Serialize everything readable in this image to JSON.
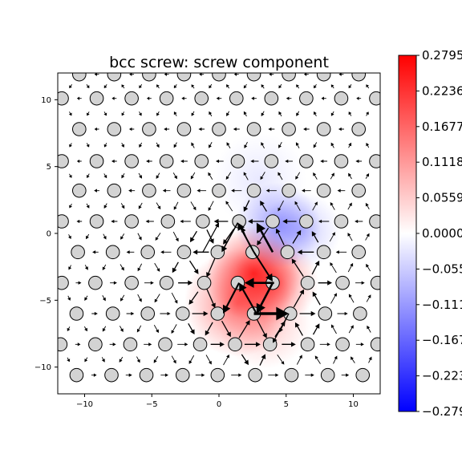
{
  "chart_data": {
    "type": "scatter",
    "title": "bcc screw: screw component",
    "xlabel": "",
    "ylabel": "",
    "xlim": [
      -12,
      12
    ],
    "ylim": [
      -12,
      12
    ],
    "x_ticks": [
      -10,
      -5,
      0,
      5,
      10
    ],
    "y_ticks": [
      -10,
      -5,
      0,
      5,
      10
    ],
    "x_tick_labels": [
      "−10",
      "−5",
      "0",
      "5",
      "10"
    ],
    "y_tick_labels": [
      "−10",
      "−5",
      "0",
      "5",
      "10"
    ],
    "colorbar": {
      "colormap": "bwr",
      "min": -0.2795,
      "max": 0.2795,
      "ticks": [
        0.2795,
        0.2236,
        0.1677,
        0.1118,
        0.0559,
        0.0,
        -0.0559,
        -0.1118,
        -0.1677,
        -0.2236,
        -0.2795
      ],
      "tick_labels": [
        "0.2795",
        "0.2236",
        "0.1677",
        "0.1118",
        "0.0559",
        "0.0000",
        "−0.0559",
        "−0.1118",
        "−0.1677",
        "−0.2236",
        "−0.2795"
      ]
    },
    "atom_rows": [
      {
        "y": 11.9,
        "x": [
          -10.4,
          -7.8,
          -5.2,
          -2.6,
          0,
          2.6,
          5.2,
          7.8,
          10.4
        ]
      },
      {
        "y": 10.1,
        "x": [
          -11.7,
          -9.1,
          -6.5,
          -3.9,
          -1.3,
          1.3,
          3.9,
          6.5,
          9.1,
          11.7
        ]
      },
      {
        "y": 7.8,
        "x": [
          -10.4,
          -7.8,
          -5.2,
          -2.6,
          0,
          2.6,
          5.2,
          7.8,
          10.4
        ]
      },
      {
        "y": 5.4,
        "x": [
          -11.7,
          -9.1,
          -6.5,
          -3.9,
          -1.3,
          1.4,
          3.9,
          6.5,
          9.1,
          11.7
        ]
      },
      {
        "y": 3.2,
        "x": [
          -10.4,
          -7.8,
          -5.2,
          -2.6,
          0,
          2.6,
          5.2,
          7.8,
          10.4
        ]
      },
      {
        "y": 0.9,
        "x": [
          -11.7,
          -9.1,
          -6.5,
          -3.8,
          -1.2,
          1.5,
          4.0,
          6.5,
          9.1,
          11.7
        ]
      },
      {
        "y": -1.4,
        "x": [
          -10.5,
          -7.9,
          -5.3,
          -2.6,
          -0.1,
          2.5,
          5.1,
          7.8,
          10.4
        ]
      },
      {
        "y": -3.7,
        "x": [
          -11.7,
          -9.2,
          -6.5,
          -3.9,
          -1.1,
          1.4,
          4.0,
          6.6,
          9.2,
          11.8
        ]
      },
      {
        "y": -6.0,
        "x": [
          -10.6,
          -7.9,
          -5.3,
          -2.7,
          -0.1,
          2.6,
          5.3,
          7.9,
          10.5
        ]
      },
      {
        "y": -8.3,
        "x": [
          -11.8,
          -9.2,
          -6.6,
          -4.0,
          -1.4,
          1.2,
          3.8,
          6.6,
          9.2,
          11.8
        ]
      },
      {
        "y": -10.6,
        "x": [
          -10.6,
          -8.0,
          -5.4,
          -2.7,
          -0.1,
          2.7,
          5.4,
          8.1,
          10.7
        ]
      }
    ],
    "heat_blobs": [
      {
        "x": 2.6,
        "y": -3.0,
        "value": 0.26,
        "sigma": 2.2
      },
      {
        "x": 1.4,
        "y": -5.2,
        "value": 0.18,
        "sigma": 2.5
      },
      {
        "x": 4.2,
        "y": -3.6,
        "value": 0.16,
        "sigma": 2.0
      },
      {
        "x": 3.4,
        "y": -6.6,
        "value": 0.08,
        "sigma": 2.2
      },
      {
        "x": 4.4,
        "y": 0.6,
        "value": -0.13,
        "sigma": 2.0
      },
      {
        "x": 6.2,
        "y": 0.2,
        "value": -0.07,
        "sigma": 1.8
      },
      {
        "x": 3.0,
        "y": 4.0,
        "value": -0.03,
        "sigma": 2.2
      }
    ],
    "arrows": [
      {
        "x1": 4.1,
        "y1": -3.7,
        "x2": 1.9,
        "y2": -3.7,
        "w": 2.6
      },
      {
        "x1": 4.0,
        "y1": -3.7,
        "x2": 2.8,
        "y2": -6.0,
        "w": 2.6
      },
      {
        "x1": 2.8,
        "y1": -6.0,
        "x2": 1.5,
        "y2": -3.7,
        "w": 2.2
      },
      {
        "x1": 2.6,
        "y1": -6.0,
        "x2": 5.2,
        "y2": -6.0,
        "w": 3.5
      },
      {
        "x1": 1.5,
        "y1": -3.7,
        "x2": 0.3,
        "y2": -6.0,
        "w": 2.2
      },
      {
        "x1": 4.0,
        "y1": -1.4,
        "x2": 2.8,
        "y2": 0.8,
        "w": 2.6
      },
      {
        "x1": 2.6,
        "y1": -1.4,
        "x2": 1.4,
        "y2": 0.8,
        "w": 2.0
      },
      {
        "x1": 2.6,
        "y1": -1.4,
        "x2": 4.0,
        "y2": -3.6,
        "w": 2.0
      },
      {
        "x1": 1.4,
        "y1": 0.8,
        "x2": 0.2,
        "y2": -1.4,
        "w": 1.6
      },
      {
        "x1": -1.2,
        "y1": -1.4,
        "x2": 0.0,
        "y2": 0.8,
        "w": 1.2
      },
      {
        "x1": 5.2,
        "y1": -6.0,
        "x2": 4.0,
        "y2": -8.2,
        "w": 1.3
      },
      {
        "x1": 5.1,
        "y1": -6.2,
        "x2": 4.5,
        "y2": -7.4,
        "w": 1.1
      }
    ]
  }
}
